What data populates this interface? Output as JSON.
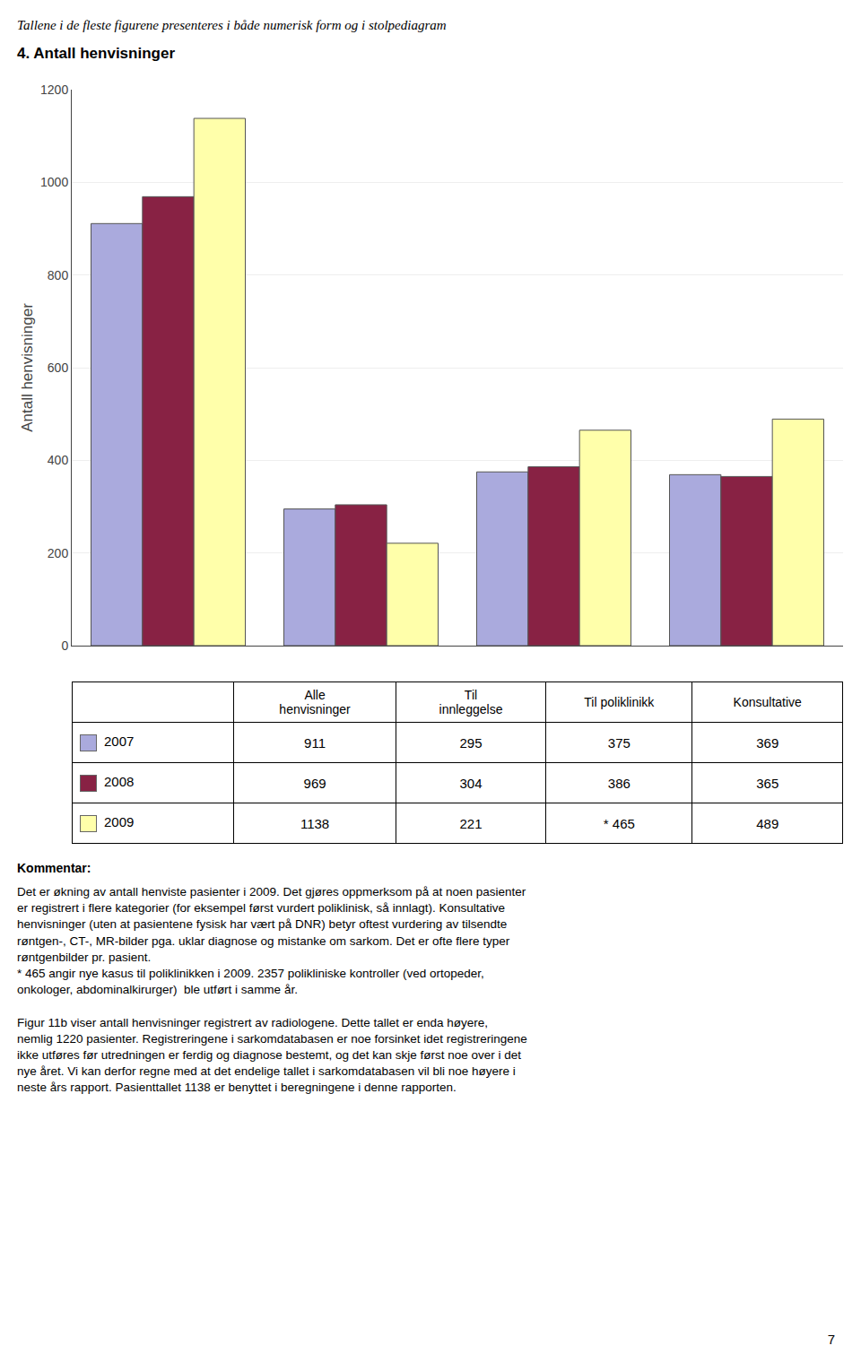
{
  "chart_data": {
    "type": "bar",
    "title": "4. Antall henvisninger",
    "subtitle": "Tallene i de fleste figurene presenteres i både numerisk form og i stolpediagram",
    "ylabel": "Antall henvisninger",
    "categories": [
      "Alle\nhenvisninger",
      "Til\ninnleggelse",
      "Til poliklinikk",
      "Konsultative"
    ],
    "series": [
      {
        "name": "2007",
        "color": "#aaaadd",
        "values": [
          911,
          295,
          375,
          369
        ]
      },
      {
        "name": "2008",
        "color": "#882244",
        "values": [
          969,
          304,
          386,
          365
        ]
      },
      {
        "name": "2009",
        "color": "#ffffaa",
        "values": [
          1138,
          221,
          465,
          489
        ]
      }
    ],
    "ylim": [
      0,
      1200
    ],
    "yticks": [
      0,
      200,
      400,
      600,
      800,
      1000,
      1200
    ],
    "grid": true,
    "tick_labels": "y",
    "table": {
      "rows": [
        [
          "2007",
          "911",
          "295",
          "375",
          "369"
        ],
        [
          "2008",
          "969",
          "304",
          "386",
          "365"
        ],
        [
          "2009",
          "1138",
          "221",
          "* 465",
          "489"
        ]
      ]
    },
    "annotations": [
      "Kommentar:",
      "Det er økning av antall henviste pasienter i 2009. Det gjøres oppmerksom på at noen pasienter\ner registrert i flere kategorier (for eksempel først vurdert poliklinisk, så innlagt). Konsultative\nhenvisninger (uten at pasientene fysisk har vært på DNR) betyr oftest vurdering av tilsendte\nrøntgen-, CT-, MR-bilder pga. uklar diagnose og mistanke om sarkom. Det er ofte flere typer\nrøntgenbilder pr. pasient.\n* 465 angir nye kasus til poliklinikken i 2009. 2357 polikliniske kontroller (ved ortopeder,\nonkologer, abdominalkirurger)  ble utført i samme år.",
      "Figur 11b viser antall henvisninger registrert av radiologene. Dette tallet er enda høyere,\nnemlig 1220 pasienter. Registreringene i sarkomdatabasen er noe forsinket idet registreringene\nikke utføres før utredningen er ferdig og diagnose bestemt, og det kan skje først noe over i det\nnye året. Vi kan derfor regne med at det endelige tallet i sarkomdatabasen vil bli noe høyere i\nneste års rapport. Pasienttallet 1138 er benyttet i beregningene i denne rapporten.",
      "7"
    ]
  }
}
